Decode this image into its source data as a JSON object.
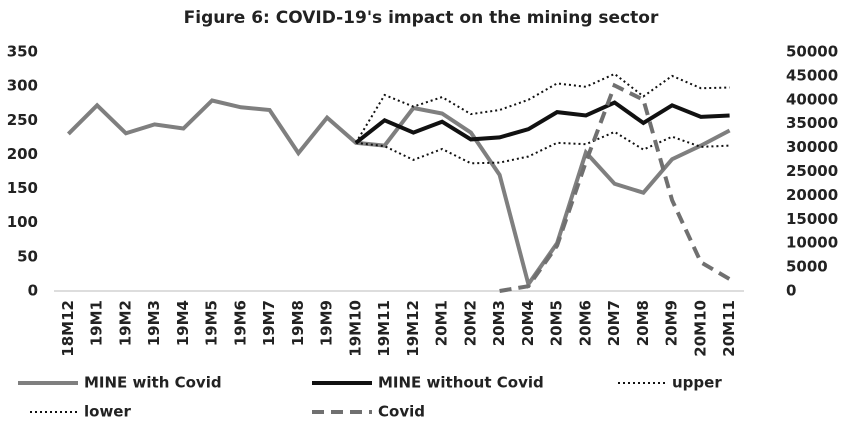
{
  "chart_data": {
    "type": "line",
    "title": "Figure 6: COVID-19's impact on the mining sector",
    "categories": [
      "18M12",
      "19M1",
      "19M2",
      "19M3",
      "19M4",
      "19M5",
      "19M6",
      "19M7",
      "19M8",
      "19M9",
      "19M10",
      "19M11",
      "19M12",
      "20M1",
      "20M2",
      "20M3",
      "20M4",
      "20M5",
      "20M6",
      "20M7",
      "20M8",
      "20M9",
      "20M10",
      "20M11"
    ],
    "series": [
      {
        "name": "MINE with Covid",
        "color": "#7f7f7f",
        "style": "solid",
        "values": [
          230,
          272,
          231,
          244,
          238,
          279,
          269,
          265,
          202,
          254,
          217,
          213,
          268,
          260,
          232,
          170,
          10,
          70,
          203,
          157,
          144,
          193,
          213,
          235
        ]
      },
      {
        "name": "MINE without Covid",
        "color": "#111111",
        "style": "solid",
        "values": [
          null,
          null,
          null,
          null,
          null,
          null,
          null,
          null,
          null,
          null,
          217,
          250,
          232,
          248,
          222,
          225,
          237,
          262,
          257,
          276,
          246,
          272,
          255,
          257
        ]
      },
      {
        "name": "upper",
        "color": "#111111",
        "style": "dotted",
        "values": [
          null,
          null,
          null,
          null,
          null,
          null,
          null,
          null,
          null,
          null,
          217,
          287,
          270,
          284,
          259,
          265,
          280,
          304,
          299,
          318,
          285,
          315,
          297,
          298
        ]
      },
      {
        "name": "lower",
        "color": "#111111",
        "style": "dotted",
        "values": [
          null,
          null,
          null,
          null,
          null,
          null,
          null,
          null,
          null,
          null,
          217,
          212,
          192,
          208,
          187,
          188,
          197,
          217,
          215,
          233,
          207,
          226,
          211,
          213
        ]
      },
      {
        "name": "Covid",
        "color": "#707070",
        "style": "dashed",
        "axis": "y2",
        "values": [
          null,
          null,
          null,
          null,
          null,
          null,
          null,
          null,
          null,
          null,
          null,
          null,
          null,
          null,
          null,
          0,
          1000,
          9500,
          27000,
          43000,
          40000,
          19000,
          6000,
          2500
        ]
      }
    ],
    "ylim": [
      0,
      350
    ],
    "yticks": [
      0,
      50,
      100,
      150,
      200,
      250,
      300,
      350
    ],
    "y2lim": [
      0,
      50000
    ],
    "y2ticks": [
      0,
      5000,
      10000,
      15000,
      20000,
      25000,
      30000,
      35000,
      40000,
      45000,
      50000
    ],
    "grid": false,
    "legend": "bottom"
  }
}
